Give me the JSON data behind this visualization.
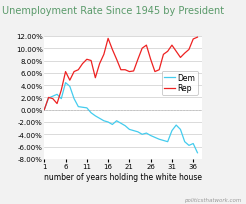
{
  "title": "Unemployment Rate Since 1945 by President",
  "xlabel": "number of years holding the white house",
  "background_color": "#f2f2f2",
  "plot_bg_color": "#ffffff",
  "title_color": "#5a9a6a",
  "title_fontsize": 7.0,
  "dem_color": "#44ccee",
  "rep_color": "#ee2222",
  "legend_dem": "Dem",
  "legend_rep": "Rep",
  "xlim": [
    1,
    38
  ],
  "ylim": [
    -0.08,
    0.12
  ],
  "xticks": [
    1,
    6,
    11,
    16,
    21,
    26,
    31,
    36
  ],
  "yticks": [
    -0.08,
    -0.06,
    -0.04,
    -0.02,
    0.0,
    0.02,
    0.04,
    0.06,
    0.08,
    0.1,
    0.12
  ],
  "watermark": "politicsthatwork.com",
  "dem_x": [
    1,
    2,
    3,
    4,
    5,
    6,
    7,
    8,
    9,
    10,
    11,
    12,
    13,
    14,
    15,
    16,
    17,
    18,
    19,
    20,
    21,
    22,
    23,
    24,
    25,
    26,
    27,
    28,
    29,
    30,
    31,
    32,
    33,
    34,
    35,
    36,
    37
  ],
  "dem_y": [
    0.0,
    0.019,
    0.022,
    0.025,
    0.018,
    0.044,
    0.038,
    0.018,
    0.005,
    0.004,
    0.003,
    -0.005,
    -0.01,
    -0.014,
    -0.018,
    -0.02,
    -0.024,
    -0.018,
    -0.022,
    -0.026,
    -0.032,
    -0.034,
    -0.036,
    -0.04,
    -0.038,
    -0.042,
    -0.045,
    -0.048,
    -0.05,
    -0.052,
    -0.034,
    -0.025,
    -0.032,
    -0.052,
    -0.058,
    -0.055,
    -0.07
  ],
  "rep_x": [
    1,
    2,
    3,
    4,
    5,
    6,
    7,
    8,
    9,
    10,
    11,
    12,
    13,
    14,
    15,
    16,
    17,
    18,
    19,
    20,
    21,
    22,
    23,
    24,
    25,
    26,
    27,
    28,
    29,
    30,
    31,
    32,
    33,
    34,
    35,
    36,
    37
  ],
  "rep_y": [
    0.0,
    0.02,
    0.018,
    0.01,
    0.032,
    0.062,
    0.048,
    0.062,
    0.065,
    0.075,
    0.082,
    0.08,
    0.052,
    0.075,
    0.09,
    0.116,
    0.098,
    0.082,
    0.065,
    0.065,
    0.062,
    0.063,
    0.082,
    0.1,
    0.105,
    0.082,
    0.062,
    0.065,
    0.09,
    0.095,
    0.105,
    0.095,
    0.085,
    0.092,
    0.098,
    0.115,
    0.118
  ]
}
